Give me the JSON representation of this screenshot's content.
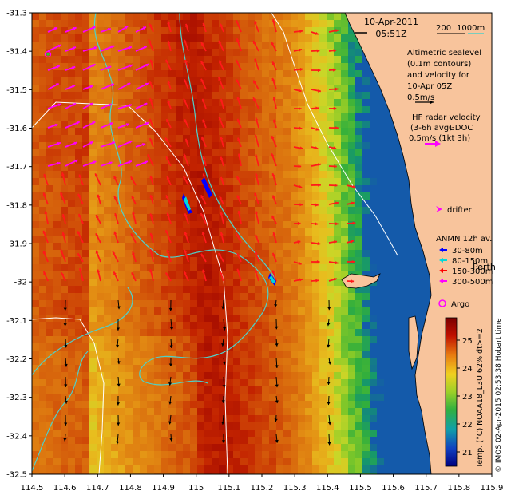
{
  "header": {
    "date": "10-Apr-2011",
    "time": "05:51Z"
  },
  "scale_bar": {
    "dist_label": "200",
    "depth_label": "1000m",
    "color": "#4fd0c8"
  },
  "altimetry_legend": {
    "lines": [
      "Altimetric sealevel",
      "(0.1m contours)",
      "and velocity for",
      "10-Apr 05Z"
    ],
    "speed_label": "0.5m/s",
    "speed_note": "(1kt 3h)"
  },
  "hf_radar_legend": {
    "lines": [
      "HF radar velocity",
      "(3-6h avg)",
      "0.5m/s (1kt 3h)"
    ],
    "overlay_label": "GDOC",
    "color": "#ff00ff"
  },
  "drifter_legend": {
    "label": "drifter",
    "color": "#ff00ff"
  },
  "anmn_legend": {
    "title": "ANMN 12h av.",
    "items": [
      {
        "label": "30-80m",
        "color": "#0000ff"
      },
      {
        "label": "80-150m",
        "color": "#00d8d8"
      },
      {
        "label": "150-300m",
        "color": "#ff0000"
      },
      {
        "label": "300-500m",
        "color": "#ff00ff"
      }
    ]
  },
  "place_label": "Perth",
  "argo_legend": {
    "label": "Argo",
    "color": "#ff00ff"
  },
  "colorbar": {
    "ticks": [
      "25",
      "24",
      "23",
      "22",
      "21"
    ],
    "title": "Temp. (°C) NOAA18_L3U 62% dt>=2"
  },
  "credit": "© IMOS 02-Apr-2015 02:53:38 Hobart time",
  "axes": {
    "x_ticks": [
      "114.5",
      "114.6",
      "114.7",
      "114.8",
      "114.9",
      "115",
      "115.1",
      "115.2",
      "115.3",
      "115.4",
      "115.5",
      "115.6",
      "115.7",
      "115.8",
      "115.9"
    ],
    "y_ticks": [
      "-31.3",
      "-31.4",
      "-31.5",
      "-31.6",
      "-31.7",
      "-31.8",
      "-31.9",
      "-32",
      "-32.1",
      "-32.2",
      "-32.3",
      "-32.4",
      "-32.5"
    ]
  },
  "colors": {
    "land": "#f8c49c",
    "warm": "#b40000",
    "mid": "#dd7a10",
    "cool": "#8ccc28",
    "coastal_green": "#30b040",
    "velocity_red": "#ff1a1a",
    "velocity_magenta": "#ff00ff",
    "contour_cyan": "#4fd0c8"
  }
}
